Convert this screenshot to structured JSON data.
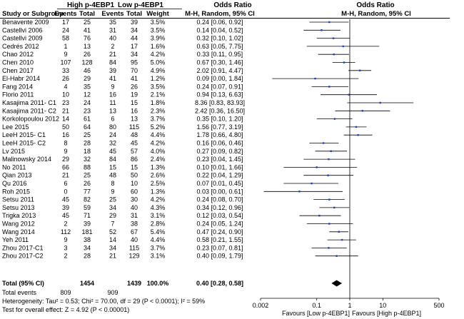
{
  "chart_data": {
    "type": "forest",
    "title": "Odds Ratio",
    "group_high": "High p-4EBP1",
    "group_low": "Low p-4EBP1",
    "columns": {
      "study": "Study or Subgroup",
      "events": "Events",
      "total": "Total",
      "weight": "Weight",
      "effect": "M-H, Random, 95% CI",
      "plot_title": "Odds Ratio",
      "plot_subtitle": "M-H, Random, 95% CI"
    },
    "studies": [
      {
        "name": "Benavente 2009",
        "e1": "17",
        "t1": "25",
        "e2": "35",
        "t2": "39",
        "weight": "3.5%",
        "or_text": "0.24 [0.06, 0.92]",
        "or": 0.24,
        "lo": 0.06,
        "hi": 0.92
      },
      {
        "name": "Castellvi 2006",
        "e1": "24",
        "t1": "41",
        "e2": "31",
        "t2": "34",
        "weight": "3.5%",
        "or_text": "0.14 [0.04, 0.52]",
        "or": 0.14,
        "lo": 0.04,
        "hi": 0.52
      },
      {
        "name": "Castellvi 2009",
        "e1": "58",
        "t1": "76",
        "e2": "40",
        "t2": "44",
        "weight": "3.9%",
        "or_text": "0.32 [0.10, 1.02]",
        "or": 0.32,
        "lo": 0.1,
        "hi": 1.02
      },
      {
        "name": "Cedrés 2012",
        "e1": "1",
        "t1": "13",
        "e2": "2",
        "t2": "17",
        "weight": "1.6%",
        "or_text": "0.63 [0.05, 7.75]",
        "or": 0.63,
        "lo": 0.05,
        "hi": 7.75
      },
      {
        "name": "Chao 2012",
        "e1": "9",
        "t1": "26",
        "e2": "21",
        "t2": "34",
        "weight": "4.2%",
        "or_text": "0.33 [0.11, 0.95]",
        "or": 0.33,
        "lo": 0.11,
        "hi": 0.95
      },
      {
        "name": "Chen 2010",
        "e1": "107",
        "t1": "128",
        "e2": "84",
        "t2": "95",
        "weight": "5.0%",
        "or_text": "0.67 [0.30, 1.46]",
        "or": 0.67,
        "lo": 0.3,
        "hi": 1.46
      },
      {
        "name": "Chen 2017",
        "e1": "33",
        "t1": "46",
        "e2": "39",
        "t2": "70",
        "weight": "4.9%",
        "or_text": "2.02 [0.91, 4.47]",
        "or": 2.02,
        "lo": 0.91,
        "hi": 4.47
      },
      {
        "name": "El-Habr 2014",
        "e1": "26",
        "t1": "29",
        "e2": "41",
        "t2": "41",
        "weight": "1.2%",
        "or_text": "0.09 [0.00, 1.84]",
        "or": 0.09,
        "lo": 0.0045,
        "hi": 1.84
      },
      {
        "name": "Fang 2014",
        "e1": "4",
        "t1": "35",
        "e2": "9",
        "t2": "26",
        "weight": "3.5%",
        "or_text": "0.24 [0.07, 0.91]",
        "or": 0.24,
        "lo": 0.07,
        "hi": 0.91
      },
      {
        "name": "Florio 2011",
        "e1": "10",
        "t1": "12",
        "e2": "16",
        "t2": "19",
        "weight": "2.1%",
        "or_text": "0.94 [0.13, 6.63]",
        "or": 0.94,
        "lo": 0.13,
        "hi": 6.63
      },
      {
        "name": "Kasajima 2011- C1",
        "e1": "23",
        "t1": "24",
        "e2": "11",
        "t2": "15",
        "weight": "1.8%",
        "or_text": "8.36 [0.83, 83.93]",
        "or": 8.36,
        "lo": 0.83,
        "hi": 83.93
      },
      {
        "name": "Kasajima 2011- C2",
        "e1": "21",
        "t1": "23",
        "e2": "13",
        "t2": "16",
        "weight": "2.3%",
        "or_text": "2.42 [0.36, 16.50]",
        "or": 2.42,
        "lo": 0.36,
        "hi": 16.5
      },
      {
        "name": "Korkolopoulou 2012",
        "e1": "14",
        "t1": "61",
        "e2": "6",
        "t2": "13",
        "weight": "3.7%",
        "or_text": "0.35 [0.10, 1.20]",
        "or": 0.35,
        "lo": 0.1,
        "hi": 1.2
      },
      {
        "name": "Lee 2015",
        "e1": "50",
        "t1": "64",
        "e2": "80",
        "t2": "115",
        "weight": "5.2%",
        "or_text": "1.56 [0.77, 3.19]",
        "or": 1.56,
        "lo": 0.77,
        "hi": 3.19
      },
      {
        "name": "LeeH 2015- C1",
        "e1": "16",
        "t1": "25",
        "e2": "24",
        "t2": "48",
        "weight": "4.4%",
        "or_text": "1.78 [0.66, 4.80]",
        "or": 1.78,
        "lo": 0.66,
        "hi": 4.8
      },
      {
        "name": "LeeH 2015- C2",
        "e1": "8",
        "t1": "28",
        "e2": "32",
        "t2": "45",
        "weight": "4.2%",
        "or_text": "0.16 [0.06, 0.46]",
        "or": 0.16,
        "lo": 0.06,
        "hi": 0.46
      },
      {
        "name": "Lv 2015",
        "e1": "9",
        "t1": "18",
        "e2": "45",
        "t2": "57",
        "weight": "4.0%",
        "or_text": "0.27 [0.09, 0.82]",
        "or": 0.27,
        "lo": 0.09,
        "hi": 0.82
      },
      {
        "name": "Malinowsky 2014",
        "e1": "29",
        "t1": "32",
        "e2": "84",
        "t2": "86",
        "weight": "2.4%",
        "or_text": "0.23 [0.04, 1.45]",
        "or": 0.23,
        "lo": 0.04,
        "hi": 1.45
      },
      {
        "name": "No 2011",
        "e1": "66",
        "t1": "88",
        "e2": "15",
        "t2": "15",
        "weight": "1.3%",
        "or_text": "0.10 [0.01, 1.66]",
        "or": 0.1,
        "lo": 0.01,
        "hi": 1.66
      },
      {
        "name": "Qian 2013",
        "e1": "21",
        "t1": "25",
        "e2": "48",
        "t2": "50",
        "weight": "2.6%",
        "or_text": "0.22 [0.04, 1.29]",
        "or": 0.22,
        "lo": 0.04,
        "hi": 1.29
      },
      {
        "name": "Qu 2016",
        "e1": "6",
        "t1": "26",
        "e2": "8",
        "t2": "10",
        "weight": "2.5%",
        "or_text": "0.07 [0.01, 0.45]",
        "or": 0.07,
        "lo": 0.01,
        "hi": 0.45
      },
      {
        "name": "Roh 2015",
        "e1": "0",
        "t1": "77",
        "e2": "9",
        "t2": "60",
        "weight": "1.3%",
        "or_text": "0.03 [0.00, 0.61]",
        "or": 0.03,
        "lo": 0.0025,
        "hi": 0.61
      },
      {
        "name": "Setsu 2011",
        "e1": "45",
        "t1": "82",
        "e2": "25",
        "t2": "30",
        "weight": "4.2%",
        "or_text": "0.24 [0.08, 0.70]",
        "or": 0.24,
        "lo": 0.08,
        "hi": 0.7
      },
      {
        "name": "Setsu 2013",
        "e1": "39",
        "t1": "59",
        "e2": "34",
        "t2": "40",
        "weight": "4.3%",
        "or_text": "0.34 [0.12, 0.96]",
        "or": 0.34,
        "lo": 0.12,
        "hi": 0.96
      },
      {
        "name": "Trigka 2013",
        "e1": "45",
        "t1": "71",
        "e2": "29",
        "t2": "31",
        "weight": "3.1%",
        "or_text": "0.12 [0.03, 0.54]",
        "or": 0.12,
        "lo": 0.03,
        "hi": 0.54
      },
      {
        "name": "Wang 2012",
        "e1": "2",
        "t1": "39",
        "e2": "7",
        "t2": "38",
        "weight": "2.8%",
        "or_text": "0.24 [0.05, 1.24]",
        "or": 0.24,
        "lo": 0.05,
        "hi": 1.24
      },
      {
        "name": "Wang 2014",
        "e1": "112",
        "t1": "181",
        "e2": "52",
        "t2": "67",
        "weight": "5.4%",
        "or_text": "0.47 [0.24, 0.90]",
        "or": 0.47,
        "lo": 0.24,
        "hi": 0.9
      },
      {
        "name": "Yeh 2011",
        "e1": "9",
        "t1": "38",
        "e2": "14",
        "t2": "40",
        "weight": "4.4%",
        "or_text": "0.58 [0.21, 1.55]",
        "or": 0.58,
        "lo": 0.21,
        "hi": 1.55
      },
      {
        "name": "Zhou 2017-C1",
        "e1": "3",
        "t1": "34",
        "e2": "34",
        "t2": "115",
        "weight": "3.7%",
        "or_text": "0.23 [0.07, 0.81]",
        "or": 0.23,
        "lo": 0.07,
        "hi": 0.81
      },
      {
        "name": "Zhou 2017-C2",
        "e1": "2",
        "t1": "28",
        "e2": "21",
        "t2": "129",
        "weight": "3.1%",
        "or_text": "0.40 [0.09, 1.79]",
        "or": 0.4,
        "lo": 0.09,
        "hi": 1.79
      }
    ],
    "total": {
      "label": "Total (95% CI)",
      "t1": "1454",
      "t2": "1439",
      "weight": "100.0%",
      "or_text": "0.40 [0.28, 0.58]",
      "or": 0.4,
      "lo": 0.28,
      "hi": 0.58
    },
    "total_events": {
      "label": "Total events",
      "e1": "809",
      "e2": "909"
    },
    "heterogeneity": "Heterogeneity: Tau² = 0.53; Chi² = 70.00, df = 29 (P < 0.0001); I² = 59%",
    "overall_effect": "Test for overall effect: Z = 4.92 (P < 0.00001)",
    "axis": {
      "scale": "log",
      "range": [
        0.002,
        500
      ],
      "ticks": [
        0.002,
        0.1,
        1,
        10,
        500
      ],
      "tick_labels": [
        "0.002",
        "0.1",
        "1",
        "10",
        "500"
      ]
    },
    "favours_left": "Favours [Low p-4EBP1]",
    "favours_right": "Favours [High p-4EBP1]",
    "colors": {
      "marker": "#1f3fbf",
      "line": "#000000",
      "header_rule": "#000000"
    }
  }
}
